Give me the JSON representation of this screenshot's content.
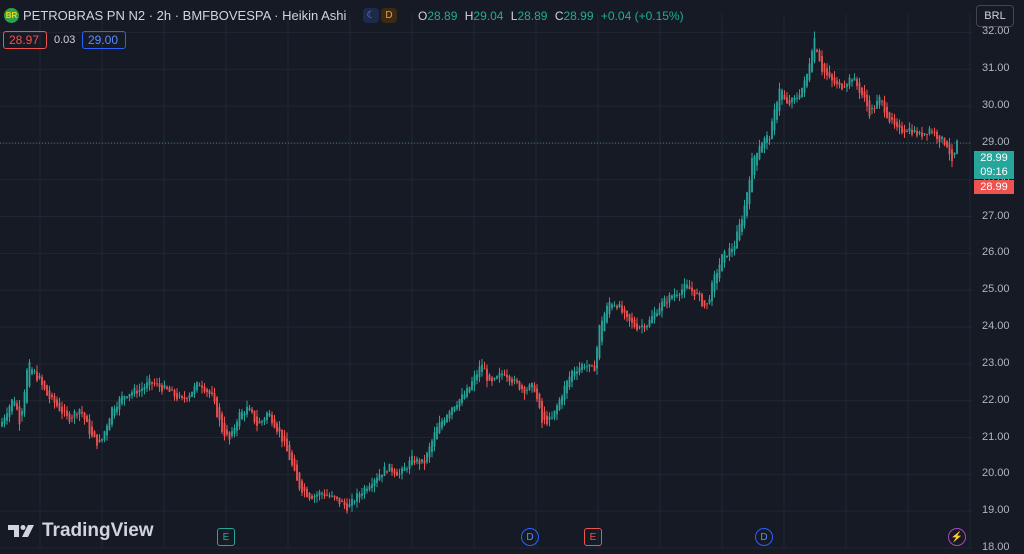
{
  "header": {
    "logo_text": "BR",
    "title": "PETROBRAS PN N2 · 2h · BMFBOVESPA · Heikin Ashi",
    "session_icon": "moon-icon",
    "delay_badge": "D",
    "ohlc": {
      "o_label": "O",
      "o": "28.89",
      "h_label": "H",
      "h": "29.04",
      "l_label": "L",
      "l": "28.89",
      "c_label": "C",
      "c": "28.99",
      "change": "+0.04 (+0.15%)"
    }
  },
  "quote": {
    "bid": "28.97",
    "spread": "0.03",
    "ask": "29.00"
  },
  "currency": "BRL",
  "price_tags": {
    "last": "28.99",
    "countdown": "09:16",
    "bid_line": "28.99"
  },
  "watermark": "TradingView",
  "events": [
    "E",
    "D",
    "E",
    "D",
    "⚡"
  ],
  "colors": {
    "up": "#26a69a",
    "down": "#ef5350",
    "background": "#161a25",
    "grid": "#232632",
    "axis_text": "#b2b5be"
  },
  "chart_data": {
    "type": "candlestick",
    "style": "Heikin Ashi",
    "ylim": [
      18,
      32.5
    ],
    "yticks": [
      "18.00",
      "19.00",
      "20.00",
      "21.00",
      "22.00",
      "23.00",
      "24.00",
      "25.00",
      "26.00",
      "27.00",
      "28.00",
      "29.00",
      "30.00",
      "31.00",
      "32.00"
    ],
    "last_price": 28.99,
    "grid": true,
    "close_path": [
      [
        0,
        21.3
      ],
      [
        6,
        21.7
      ],
      [
        14,
        22.1
      ],
      [
        20,
        21.4
      ],
      [
        28,
        23.0
      ],
      [
        38,
        22.6
      ],
      [
        48,
        22.1
      ],
      [
        56,
        21.9
      ],
      [
        68,
        21.5
      ],
      [
        80,
        21.8
      ],
      [
        92,
        21.0
      ],
      [
        100,
        20.8
      ],
      [
        112,
        21.8
      ],
      [
        126,
        22.2
      ],
      [
        140,
        22.3
      ],
      [
        150,
        22.5
      ],
      [
        166,
        22.3
      ],
      [
        182,
        22.0
      ],
      [
        200,
        22.5
      ],
      [
        212,
        22.1
      ],
      [
        222,
        21.2
      ],
      [
        230,
        20.9
      ],
      [
        238,
        21.6
      ],
      [
        248,
        21.8
      ],
      [
        258,
        21.3
      ],
      [
        268,
        21.7
      ],
      [
        280,
        21.1
      ],
      [
        290,
        20.4
      ],
      [
        298,
        19.7
      ],
      [
        310,
        19.4
      ],
      [
        322,
        19.5
      ],
      [
        336,
        19.3
      ],
      [
        348,
        19.1
      ],
      [
        360,
        19.5
      ],
      [
        374,
        19.9
      ],
      [
        388,
        20.2
      ],
      [
        400,
        20.0
      ],
      [
        412,
        20.4
      ],
      [
        424,
        20.3
      ],
      [
        436,
        21.2
      ],
      [
        450,
        21.8
      ],
      [
        466,
        22.2
      ],
      [
        476,
        22.7
      ],
      [
        482,
        23.0
      ],
      [
        490,
        22.4
      ],
      [
        504,
        22.8
      ],
      [
        514,
        22.5
      ],
      [
        524,
        22.3
      ],
      [
        534,
        22.4
      ],
      [
        542,
        21.4
      ],
      [
        552,
        21.5
      ],
      [
        562,
        22.2
      ],
      [
        572,
        22.8
      ],
      [
        584,
        23.0
      ],
      [
        594,
        22.8
      ],
      [
        600,
        24.1
      ],
      [
        610,
        24.7
      ],
      [
        618,
        24.6
      ],
      [
        626,
        24.2
      ],
      [
        636,
        24.0
      ],
      [
        648,
        24.1
      ],
      [
        660,
        24.6
      ],
      [
        674,
        24.9
      ],
      [
        686,
        25.1
      ],
      [
        696,
        24.9
      ],
      [
        706,
        24.5
      ],
      [
        714,
        25.3
      ],
      [
        722,
        25.9
      ],
      [
        734,
        26.2
      ],
      [
        744,
        27.2
      ],
      [
        752,
        28.5
      ],
      [
        760,
        29.0
      ],
      [
        770,
        29.2
      ],
      [
        780,
        30.6
      ],
      [
        786,
        30.0
      ],
      [
        796,
        30.2
      ],
      [
        806,
        30.7
      ],
      [
        814,
        31.9
      ],
      [
        822,
        31.0
      ],
      [
        830,
        30.7
      ],
      [
        840,
        30.5
      ],
      [
        852,
        30.8
      ],
      [
        864,
        30.2
      ],
      [
        870,
        29.8
      ],
      [
        880,
        30.2
      ],
      [
        890,
        29.6
      ],
      [
        898,
        29.3
      ],
      [
        908,
        29.4
      ],
      [
        920,
        29.2
      ],
      [
        930,
        29.4
      ],
      [
        940,
        29.1
      ],
      [
        948,
        28.95
      ],
      [
        952,
        28.4
      ],
      [
        957,
        28.99
      ]
    ]
  }
}
